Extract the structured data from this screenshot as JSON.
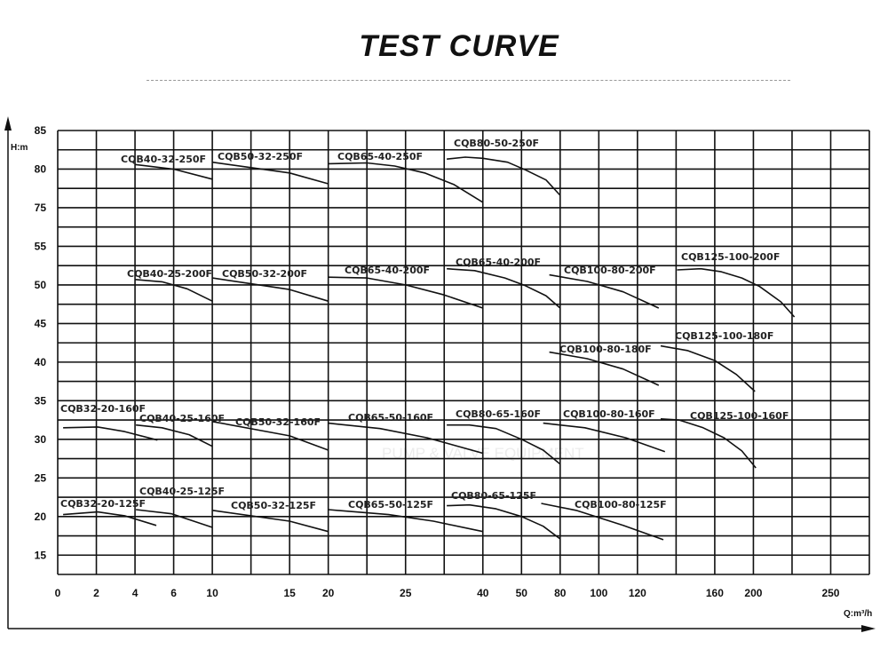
{
  "title": "TEST CURVE",
  "watermark": "PUMP & VALVE EQUIPMENT",
  "chart_data": {
    "type": "line",
    "title": "TEST CURVE",
    "xlabel": "Q:m³/h",
    "ylabel": "H:m",
    "x_ticks": [
      0,
      2,
      4,
      6,
      10,
      15,
      20,
      25,
      40,
      50,
      80,
      100,
      120,
      160,
      200,
      250
    ],
    "y_ticks": [
      85,
      80,
      75,
      55,
      50,
      45,
      40,
      35,
      30,
      25,
      20,
      15
    ],
    "y_axis_break": [
      75,
      55
    ],
    "grid": true,
    "line_color": "#111111",
    "series": [
      {
        "name": "CQB40-32-250F",
        "points": [
          [
            4,
            80.6
          ],
          [
            6,
            80
          ],
          [
            10,
            78.7
          ]
        ]
      },
      {
        "name": "CQB50-32-250F",
        "points": [
          [
            10,
            80.9
          ],
          [
            15,
            79.5
          ],
          [
            20,
            78.1
          ]
        ]
      },
      {
        "name": "CQB65-40-250F",
        "points": [
          [
            20,
            80.7
          ],
          [
            22.5,
            80.8
          ],
          [
            24.3,
            80.4
          ],
          [
            28.7,
            79.5
          ],
          [
            34.4,
            78
          ],
          [
            40,
            75.7
          ]
        ]
      },
      {
        "name": "CQB80-50-250F",
        "points": [
          [
            33,
            81.3
          ],
          [
            36.6,
            81.55
          ],
          [
            40,
            81.4
          ],
          [
            46.4,
            80.9
          ],
          [
            53,
            79.9
          ],
          [
            69,
            78.6
          ],
          [
            80,
            76.6
          ]
        ]
      },
      {
        "name": "CQB40-25-200F",
        "points": [
          [
            4,
            50.7
          ],
          [
            5.4,
            50.4
          ],
          [
            7.4,
            49.5
          ],
          [
            10,
            47.9
          ]
        ]
      },
      {
        "name": "CQB50-32-200F",
        "points": [
          [
            10,
            50.9
          ],
          [
            15,
            49.4
          ],
          [
            20,
            47.9
          ]
        ]
      },
      {
        "name": "CQB65-40-200F",
        "points": [
          [
            20,
            51
          ],
          [
            22.5,
            50.9
          ],
          [
            25,
            50
          ],
          [
            32.5,
            48.7
          ],
          [
            40,
            47
          ]
        ]
      },
      {
        "name": "CQB65-40-200F",
        "points": [
          [
            33,
            52.1
          ],
          [
            38.4,
            51.85
          ],
          [
            45.7,
            50.9
          ],
          [
            53,
            49.9
          ],
          [
            69,
            48.6
          ],
          [
            80,
            47
          ]
        ]
      },
      {
        "name": "CQB100-80-200F",
        "points": [
          [
            71.6,
            51.3
          ],
          [
            94,
            50.45
          ],
          [
            112.6,
            49.1
          ],
          [
            131,
            47
          ]
        ]
      },
      {
        "name": "CQB125-100-200F",
        "points": [
          [
            140.5,
            51.95
          ],
          [
            152.8,
            52.1
          ],
          [
            166.8,
            51.7
          ],
          [
            188,
            50.9
          ],
          [
            204,
            49.8
          ],
          [
            217.8,
            47.8
          ],
          [
            226.5,
            45.85
          ]
        ]
      },
      {
        "name": "CQB100-80-180F",
        "points": [
          [
            71.6,
            41.3
          ],
          [
            94,
            40.45
          ],
          [
            112.6,
            39.1
          ],
          [
            131,
            37
          ]
        ]
      },
      {
        "name": "CQB125-100-180F",
        "points": [
          [
            132,
            42.1
          ],
          [
            145.8,
            41.5
          ],
          [
            160,
            40.2
          ],
          [
            182.4,
            38.4
          ],
          [
            201,
            36.2
          ]
        ]
      },
      {
        "name": "CQB32-20-160F",
        "points": [
          [
            0.28,
            31.5
          ],
          [
            2.07,
            31.6
          ],
          [
            3.46,
            31
          ],
          [
            5.16,
            29.9
          ]
        ]
      },
      {
        "name": "CQB40-25-160F",
        "points": [
          [
            4.05,
            31.85
          ],
          [
            5.4,
            31.5
          ],
          [
            7.6,
            30.6
          ],
          [
            10,
            29.1
          ]
        ]
      },
      {
        "name": "CQB50-32-160F",
        "points": [
          [
            10,
            32.3
          ],
          [
            15,
            30.45
          ],
          [
            20,
            28.6
          ]
        ]
      },
      {
        "name": "CQB65-50-160F",
        "points": [
          [
            20,
            32.1
          ],
          [
            23.35,
            31.4
          ],
          [
            29.2,
            30.2
          ],
          [
            40,
            28.2
          ]
        ]
      },
      {
        "name": "CQB80-65-160F",
        "points": [
          [
            33,
            31.85
          ],
          [
            37.4,
            31.85
          ],
          [
            43.4,
            31.4
          ],
          [
            50,
            30
          ],
          [
            66.8,
            28.6
          ],
          [
            80,
            26.8
          ]
        ]
      },
      {
        "name": "CQB100-80-160F",
        "points": [
          [
            66.8,
            32.1
          ],
          [
            92.8,
            31.5
          ],
          [
            114,
            30.2
          ],
          [
            134.2,
            28.4
          ]
        ]
      },
      {
        "name": "CQB125-100-160F",
        "points": [
          [
            132,
            32.65
          ],
          [
            141.6,
            32.5
          ],
          [
            154,
            31.5
          ],
          [
            169.6,
            30.2
          ],
          [
            188,
            28.5
          ],
          [
            201.6,
            26.3
          ]
        ]
      },
      {
        "name": "CQB32-20-125F",
        "points": [
          [
            0.28,
            20.25
          ],
          [
            2.07,
            20.6
          ],
          [
            3.46,
            20.1
          ],
          [
            5.1,
            18.85
          ]
        ]
      },
      {
        "name": "CQB40-25-125F",
        "points": [
          [
            4.05,
            20.9
          ],
          [
            5.9,
            20.35
          ],
          [
            10,
            18.6
          ]
        ]
      },
      {
        "name": "CQB50-32-125F",
        "points": [
          [
            10,
            20.8
          ],
          [
            15,
            19.4
          ],
          [
            20,
            18.05
          ]
        ]
      },
      {
        "name": "CQB65-50-125F",
        "points": [
          [
            20,
            20.9
          ],
          [
            23.9,
            20.25
          ],
          [
            30.4,
            19.4
          ],
          [
            40,
            18.05
          ]
        ]
      },
      {
        "name": "CQB80-65-125F",
        "points": [
          [
            33,
            21.4
          ],
          [
            37.4,
            21.5
          ],
          [
            43.4,
            21
          ],
          [
            50,
            20
          ],
          [
            66.8,
            18.75
          ],
          [
            80,
            17.1
          ]
        ]
      },
      {
        "name": "CQB100-80-125F",
        "points": [
          [
            65.3,
            21.7
          ],
          [
            88.2,
            20.8
          ],
          [
            112.6,
            18.85
          ],
          [
            133.4,
            17
          ]
        ]
      }
    ]
  }
}
